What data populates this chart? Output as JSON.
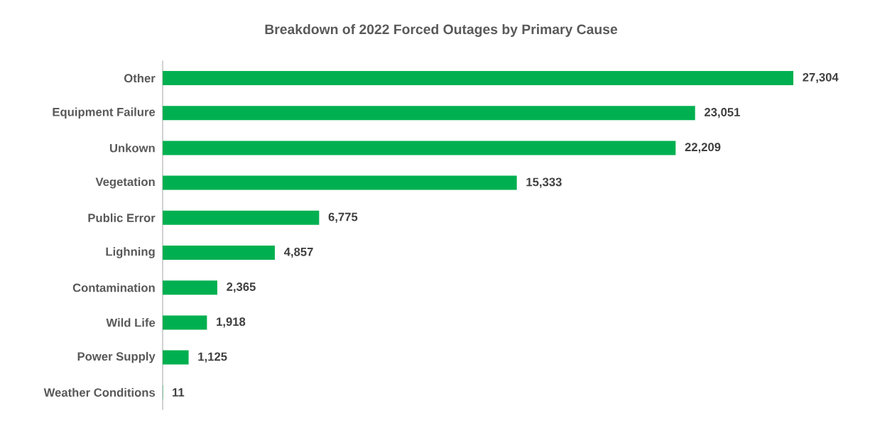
{
  "chart_data": {
    "type": "bar",
    "orientation": "horizontal",
    "title": "Breakdown of 2022 Forced Outages by Primary Cause",
    "categories": [
      "Other",
      "Equipment Failure",
      "Unkown",
      "Vegetation",
      "Public Error",
      "Lighning",
      "Contamination",
      "Wild Life",
      "Power Supply",
      "Weather Conditions"
    ],
    "values": [
      27304,
      23051,
      22209,
      15333,
      6775,
      4857,
      2365,
      1918,
      1125,
      11
    ],
    "value_labels": [
      "27,304",
      "23,051",
      "22,209",
      "15,333",
      "6,775",
      "4,857",
      "2,365",
      "1,918",
      "1,125",
      "11"
    ],
    "color": "#00b050"
  }
}
